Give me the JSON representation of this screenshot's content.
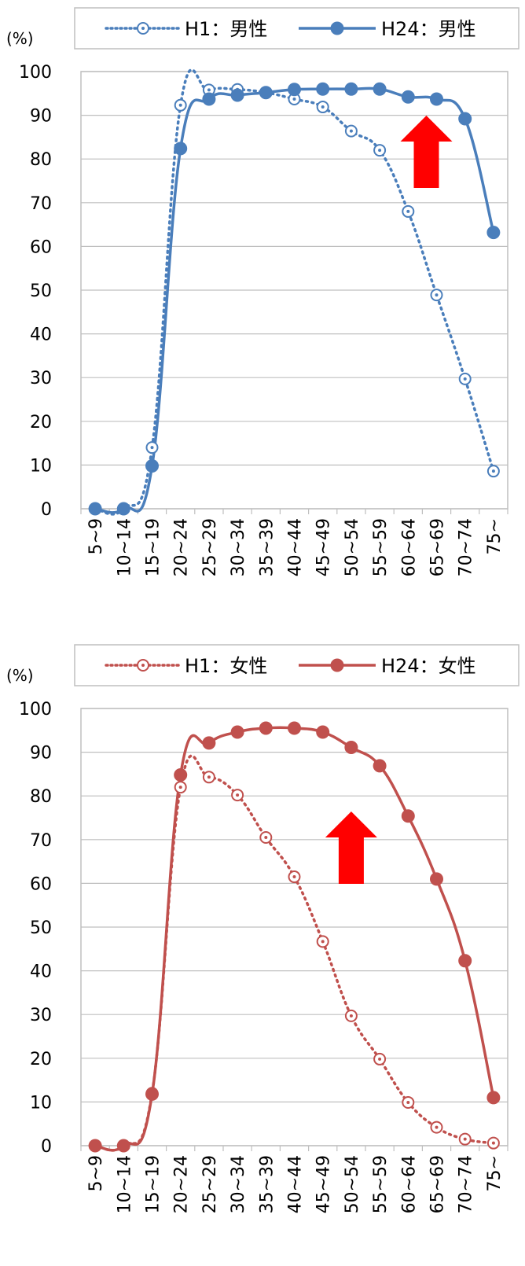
{
  "chart_data": [
    {
      "type": "line",
      "title": "",
      "ylabel": "(%)",
      "xlabel": "",
      "ylim": [
        0,
        100
      ],
      "yticks": [
        0,
        10,
        20,
        30,
        40,
        50,
        60,
        70,
        80,
        90,
        100
      ],
      "categories": [
        "5~9",
        "10~14",
        "15~19",
        "20~24",
        "25~29",
        "30~34",
        "35~39",
        "40~44",
        "45~49",
        "50~54",
        "55~59",
        "60~64",
        "65~69",
        "70~74",
        "75~"
      ],
      "grid": true,
      "legend_position": "top",
      "series": [
        {
          "name": "H1：男性",
          "style": "dotted-open",
          "color": "#4a7ebb",
          "values": [
            0,
            0,
            14,
            92.3,
            95.8,
            95.9,
            95.2,
            93.7,
            91.9,
            86.4,
            82,
            68,
            48.9,
            29.7,
            8.6
          ]
        },
        {
          "name": "H24：男性",
          "style": "solid-filled",
          "color": "#4a7ebb",
          "values": [
            0,
            0,
            9.8,
            82.4,
            93.7,
            94.6,
            95.2,
            95.9,
            96,
            96,
            96,
            94.2,
            93.7,
            89.2,
            63.2
          ]
        }
      ],
      "annotation": {
        "type": "arrow-up",
        "color": "#ff0000",
        "near_category": "65~69"
      }
    },
    {
      "type": "line",
      "title": "",
      "ylabel": "(%)",
      "xlabel": "",
      "ylim": [
        0,
        100
      ],
      "yticks": [
        0,
        10,
        20,
        30,
        40,
        50,
        60,
        70,
        80,
        90,
        100
      ],
      "categories": [
        "5~9",
        "10~14",
        "15~19",
        "20~24",
        "25~29",
        "30~34",
        "35~39",
        "40~44",
        "45~49",
        "50~54",
        "55~59",
        "60~64",
        "65~69",
        "70~74",
        "75~"
      ],
      "grid": true,
      "legend_position": "top",
      "series": [
        {
          "name": "H1：女性",
          "style": "dotted-open",
          "color": "#c0504d",
          "values": [
            0,
            0,
            12,
            82,
            84.3,
            80.2,
            70.5,
            61.5,
            46.7,
            29.7,
            19.8,
            9.9,
            4.2,
            1.5,
            0.6
          ]
        },
        {
          "name": "H24：女性",
          "style": "solid-filled",
          "color": "#c0504d",
          "values": [
            0,
            0,
            11.8,
            84.8,
            92.1,
            94.6,
            95.5,
            95.5,
            94.6,
            91.1,
            86.9,
            75.4,
            61,
            42.3,
            11
          ]
        }
      ],
      "annotation": {
        "type": "arrow-up",
        "color": "#ff0000",
        "near_category": "50~54"
      }
    }
  ]
}
